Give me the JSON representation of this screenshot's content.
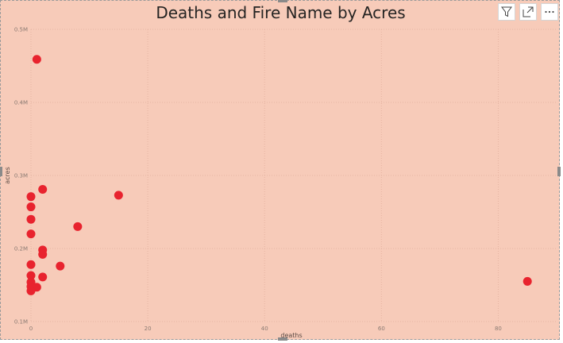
{
  "chart_data": {
    "type": "scatter",
    "title": "Deaths and Fire Name by Acres",
    "xlabel": "deaths",
    "ylabel": "acres",
    "xlim": [
      0,
      90
    ],
    "ylim": [
      100000,
      500000
    ],
    "x_ticks": [
      0,
      20,
      40,
      60,
      80
    ],
    "x_tick_labels": [
      "0",
      "20",
      "40",
      "60",
      "80"
    ],
    "y_ticks": [
      100000,
      200000,
      300000,
      400000,
      500000
    ],
    "y_tick_labels": [
      "0.1M",
      "0.2M",
      "0.3M",
      "0.4M",
      "0.5M"
    ],
    "grid": true,
    "marker_color": "#e8232e",
    "points": [
      {
        "x": 1,
        "y": 459000
      },
      {
        "x": 2,
        "y": 281000
      },
      {
        "x": 15,
        "y": 273000
      },
      {
        "x": 0,
        "y": 271000
      },
      {
        "x": 0,
        "y": 257000
      },
      {
        "x": 0,
        "y": 240000
      },
      {
        "x": 8,
        "y": 230000
      },
      {
        "x": 0,
        "y": 220000
      },
      {
        "x": 2,
        "y": 198000
      },
      {
        "x": 2,
        "y": 192000
      },
      {
        "x": 0,
        "y": 178000
      },
      {
        "x": 5,
        "y": 176000
      },
      {
        "x": 0,
        "y": 163000
      },
      {
        "x": 2,
        "y": 161000
      },
      {
        "x": 0,
        "y": 154000
      },
      {
        "x": 85,
        "y": 155000
      },
      {
        "x": 0,
        "y": 148000
      },
      {
        "x": 1,
        "y": 147000
      },
      {
        "x": 0,
        "y": 142000
      }
    ]
  },
  "header": {
    "filter_icon": "filter-icon",
    "focus_icon": "focus-mode-icon",
    "more_icon": "more-options-icon"
  }
}
